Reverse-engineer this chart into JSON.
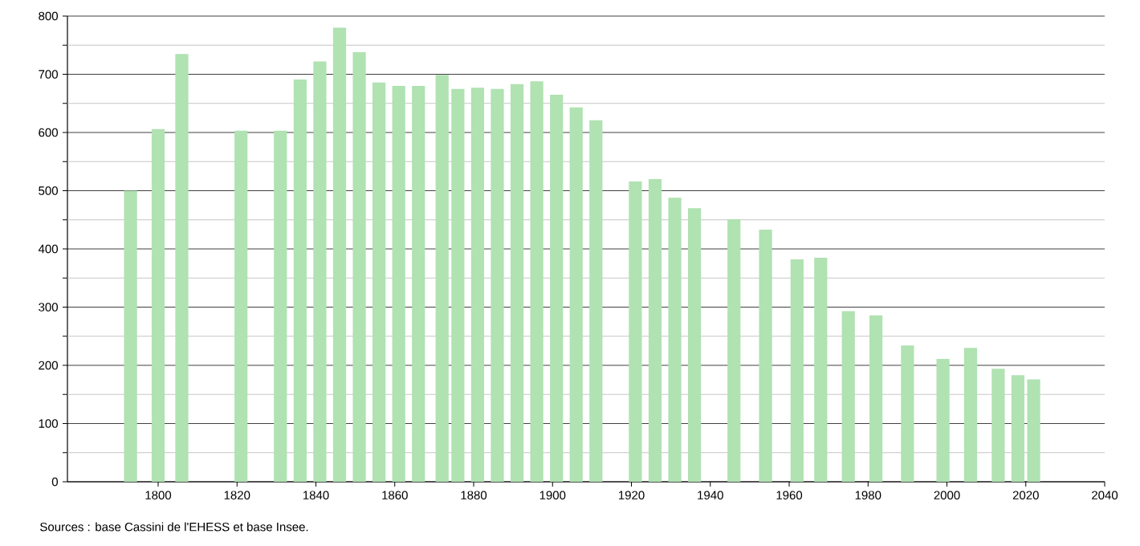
{
  "chart_data": {
    "type": "bar",
    "color": "#b0e2b2",
    "x": [
      1793,
      1800,
      1806,
      1821,
      1831,
      1836,
      1841,
      1846,
      1851,
      1856,
      1861,
      1866,
      1872,
      1876,
      1881,
      1886,
      1891,
      1896,
      1901,
      1906,
      1911,
      1921,
      1926,
      1931,
      1936,
      1946,
      1954,
      1962,
      1968,
      1975,
      1982,
      1990,
      1999,
      2006,
      2013,
      2018,
      2022
    ],
    "values": [
      500,
      606,
      735,
      603,
      603,
      691,
      722,
      780,
      738,
      686,
      680,
      680,
      699,
      675,
      677,
      675,
      683,
      688,
      665,
      643,
      621,
      516,
      520,
      488,
      470,
      451,
      433,
      382,
      385,
      293,
      286,
      234,
      211,
      230,
      194,
      183,
      176
    ],
    "xlim": [
      1777,
      2040
    ],
    "xticks": [
      1800,
      1820,
      1840,
      1860,
      1880,
      1900,
      1920,
      1940,
      1960,
      1980,
      2000,
      2020,
      2040
    ],
    "ylim": [
      0,
      800
    ],
    "yticks": [
      0,
      {
        "value": 50,
        "label": null
      },
      100,
      {
        "value": 150,
        "label": null
      },
      200,
      {
        "value": 250,
        "label": null
      },
      300,
      {
        "value": 350,
        "label": null
      },
      400,
      {
        "value": 450,
        "label": null
      },
      500,
      {
        "value": 550,
        "label": null
      },
      600,
      {
        "value": 650,
        "label": null
      },
      700,
      {
        "value": 750,
        "label": null
      },
      800
    ],
    "grid": "y",
    "annotations": [
      "Sources : base Cassini de l'EHESS et base Insee."
    ]
  }
}
